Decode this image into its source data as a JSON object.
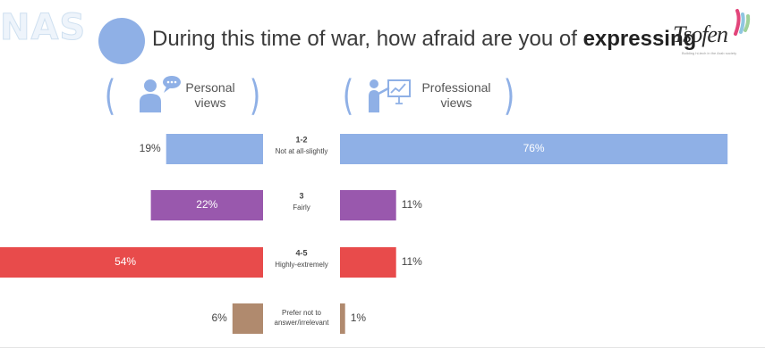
{
  "header": {
    "logo_text": "NAS",
    "title_prefix": "During this time of war, how afraid are you of ",
    "title_emphasis": "expressing",
    "brand": "Tsofen",
    "brand_tagline": "Building hi-tech in the Arab society"
  },
  "colors": {
    "accent": "#8fb0e6",
    "not_at_all": "#8fb0e6",
    "fairly": "#9958ad",
    "highly": "#e84b4b",
    "prefer_not": "#b08a6e"
  },
  "icons": [
    "person-speech-icon",
    "presenter-board-icon"
  ],
  "chart_data": {
    "type": "bar",
    "orientation": "horizontal-diverging",
    "groups": [
      {
        "name": "Personal views"
      },
      {
        "name": "Professional views"
      }
    ],
    "categories": [
      {
        "code": "1-2",
        "label": "Not at all-slightly"
      },
      {
        "code": "3",
        "label": "Fairly"
      },
      {
        "code": "4-5",
        "label": "Highly-extremely"
      },
      {
        "code": "",
        "label": "Prefer not to answer/irrelevant"
      }
    ],
    "series": [
      {
        "name": "Personal views",
        "values": [
          19,
          22,
          54,
          6
        ],
        "labels": [
          "19%",
          "22%",
          "54%",
          "6%"
        ]
      },
      {
        "name": "Professional views",
        "values": [
          76,
          11,
          11,
          1
        ],
        "labels": [
          "76%",
          "11%",
          "11%",
          "1%"
        ]
      }
    ],
    "unit": "%"
  }
}
